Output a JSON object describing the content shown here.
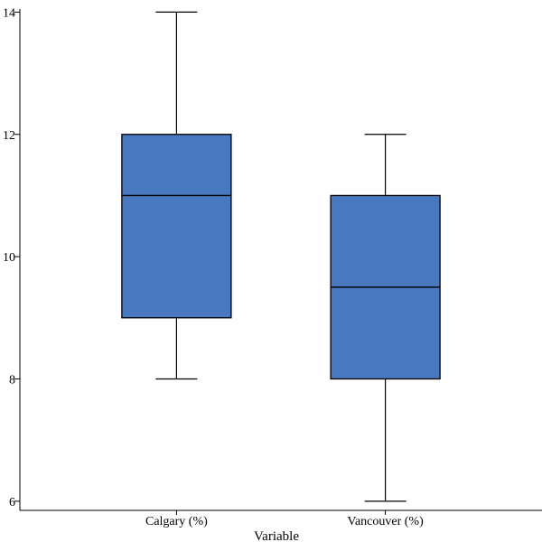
{
  "chart_data": {
    "type": "box",
    "xlabel": "Variable",
    "ylabel": "",
    "ylim": [
      5.85,
      14.05
    ],
    "yticks": [
      6,
      8,
      10,
      12,
      14
    ],
    "grid": false,
    "box_color": "#4878c0",
    "categories": [
      "Calgary (%)",
      "Vancouver (%)"
    ],
    "boxes": [
      {
        "label": "Calgary (%)",
        "min": 8,
        "q1": 9,
        "median": 11,
        "q3": 12,
        "max": 14
      },
      {
        "label": "Vancouver (%)",
        "min": 6,
        "q1": 8,
        "median": 9.5,
        "q3": 11,
        "max": 12
      }
    ]
  }
}
